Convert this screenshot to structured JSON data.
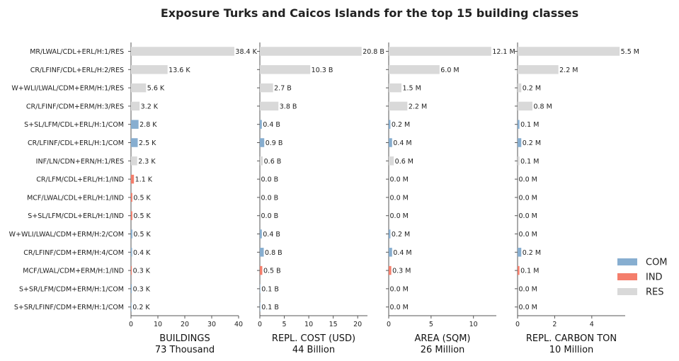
{
  "chart_data": {
    "type": "bar",
    "orientation": "horizontal",
    "title": "Exposure Turks and Caicos Islands for the top 15 building classes",
    "categories": [
      "MR/LWAL/CDL+ERL/H:1/RES",
      "CR/LFINF/CDL+ERL/H:2/RES",
      "W+WLI/LWAL/CDM+ERM/H:1/RES",
      "CR/LFINF/CDM+ERM/H:3/RES",
      "S+SL/LFM/CDL+ERL/H:1/COM",
      "CR/LFINF/CDL+ERL/H:1/COM",
      "INF/LN/CDN+ERN/H:1/RES",
      "CR/LFM/CDL+ERL/H:1/IND",
      "MCF/LWAL/CDL+ERL/H:1/IND",
      "S+SL/LFM/CDL+ERL/H:1/IND",
      "W+WLI/LWAL/CDM+ERM/H:2/COM",
      "CR/LFINF/CDM+ERM/H:4/COM",
      "MCF/LWAL/CDM+ERM/H:1/IND",
      "S+SR/LFM/CDM+ERM/H:1/COM",
      "S+SR/LFINF/CDM+ERM/H:1/COM"
    ],
    "occupancy": [
      "RES",
      "RES",
      "RES",
      "RES",
      "COM",
      "COM",
      "RES",
      "IND",
      "IND",
      "IND",
      "COM",
      "COM",
      "IND",
      "COM",
      "COM"
    ],
    "colors": {
      "COM": "#87aed0",
      "IND": "#f47e6c",
      "RES": "#d9d9d9"
    },
    "legend": {
      "entries": [
        "COM",
        "IND",
        "RES"
      ],
      "placement": "lower-right"
    },
    "grid": false,
    "panels": [
      {
        "xlabel": "BUILDINGS",
        "total": "73 Thousand",
        "xlim": [
          0,
          40
        ],
        "ticks": [
          0,
          10,
          20,
          30,
          40
        ],
        "values": [
          38.4,
          13.6,
          5.6,
          3.2,
          2.8,
          2.5,
          2.3,
          1.1,
          0.5,
          0.5,
          0.5,
          0.4,
          0.3,
          0.3,
          0.2
        ],
        "labels": [
          "38.4 K",
          "13.6 K",
          "5.6 K",
          "3.2 K",
          "2.8 K",
          "2.5 K",
          "2.3 K",
          "1.1 K",
          "0.5 K",
          "0.5 K",
          "0.5 K",
          "0.4 K",
          "0.3 K",
          "0.3 K",
          "0.2 K"
        ]
      },
      {
        "xlabel": "REPL. COST (USD)",
        "total": "44 Billion",
        "xlim": [
          0,
          22
        ],
        "ticks": [
          0,
          5,
          10,
          15,
          20
        ],
        "values": [
          20.8,
          10.3,
          2.7,
          3.8,
          0.4,
          0.9,
          0.6,
          0.0,
          0.0,
          0.0,
          0.4,
          0.8,
          0.5,
          0.1,
          0.1
        ],
        "labels": [
          "20.8 B",
          "10.3 B",
          "2.7 B",
          "3.8 B",
          "0.4 B",
          "0.9 B",
          "0.6 B",
          "0.0 B",
          "0.0 B",
          "0.0 B",
          "0.4 B",
          "0.8 B",
          "0.5 B",
          "0.1 B",
          "0.1 B"
        ]
      },
      {
        "xlabel": "AREA (SQM)",
        "total": "26 Million",
        "xlim": [
          0,
          12.7
        ],
        "ticks": [
          0,
          5,
          10
        ],
        "values": [
          12.1,
          6.0,
          1.5,
          2.2,
          0.2,
          0.4,
          0.6,
          0.0,
          0.0,
          0.0,
          0.2,
          0.4,
          0.3,
          0.0,
          0.0
        ],
        "labels": [
          "12.1 M",
          "6.0 M",
          "1.5 M",
          "2.2 M",
          "0.2 M",
          "0.4 M",
          "0.6 M",
          "0.0 M",
          "0.0 M",
          "0.0 M",
          "0.2 M",
          "0.4 M",
          "0.3 M",
          "0.0 M",
          "0.0 M"
        ]
      },
      {
        "xlabel": "REPL. CARBON TON",
        "total": "10 Million",
        "xlim": [
          0,
          5.8
        ],
        "ticks": [
          0,
          2,
          4
        ],
        "values": [
          5.5,
          2.2,
          0.2,
          0.8,
          0.1,
          0.2,
          0.1,
          0.0,
          0.0,
          0.0,
          0.0,
          0.2,
          0.1,
          0.0,
          0.0
        ],
        "labels": [
          "5.5 M",
          "2.2 M",
          "0.2 M",
          "0.8 M",
          "0.1 M",
          "0.2 M",
          "0.1 M",
          "0.0 M",
          "0.0 M",
          "0.0 M",
          "0.0 M",
          "0.2 M",
          "0.1 M",
          "0.0 M",
          "0.0 M"
        ]
      }
    ]
  }
}
